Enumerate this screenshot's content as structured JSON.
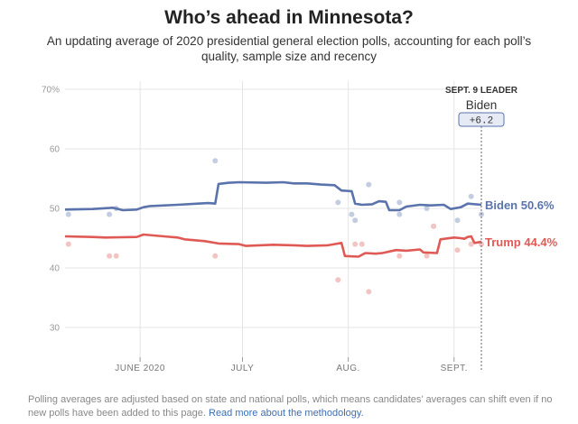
{
  "header": {
    "title": "Who’s ahead in Minnesota?",
    "subtitle": "An updating average of 2020 presidential general election polls, accounting for each poll’s quality, sample size and recency"
  },
  "leader_box": {
    "date_label": "SEPT. 9 LEADER",
    "name": "Biden",
    "margin": "+6.2"
  },
  "footnote": {
    "text": "Polling averages are adjusted based on state and national polls, which means candidates’ averages can shift even if no new polls have been added to this page.",
    "link": "Read more about the methodology."
  },
  "chart_data": {
    "type": "line",
    "x_start": "2020-05-10",
    "x_end": "2020-09-09",
    "ylim": [
      25,
      72
    ],
    "y_ticks": [
      30,
      40,
      50,
      60,
      70
    ],
    "y_tick_labels": [
      "30",
      "40",
      "50",
      "60",
      "70%"
    ],
    "x_ticks": [
      {
        "date": "2020-06-01",
        "label": "JUNE 2020"
      },
      {
        "date": "2020-07-01",
        "label": "JULY"
      },
      {
        "date": "2020-08-01",
        "label": "AUG."
      },
      {
        "date": "2020-09-01",
        "label": "SEPT."
      }
    ],
    "grid": true,
    "series": [
      {
        "name": "Biden",
        "end_label": "Biden 50.6%",
        "color": "#5a73ad",
        "dot_color": "#c3cce0",
        "points": [
          [
            "2020-05-10",
            49.8
          ],
          [
            "2020-05-18",
            49.9
          ],
          [
            "2020-05-24",
            50.1
          ],
          [
            "2020-05-27",
            49.7
          ],
          [
            "2020-05-31",
            49.8
          ],
          [
            "2020-06-02",
            50.2
          ],
          [
            "2020-06-04",
            50.4
          ],
          [
            "2020-06-12",
            50.6
          ],
          [
            "2020-06-18",
            50.8
          ],
          [
            "2020-06-21",
            50.9
          ],
          [
            "2020-06-23",
            50.8
          ],
          [
            "2020-06-24",
            54.1
          ],
          [
            "2020-06-27",
            54.3
          ],
          [
            "2020-06-30",
            54.4
          ],
          [
            "2020-07-08",
            54.3
          ],
          [
            "2020-07-13",
            54.4
          ],
          [
            "2020-07-16",
            54.2
          ],
          [
            "2020-07-20",
            54.2
          ],
          [
            "2020-07-24",
            54.0
          ],
          [
            "2020-07-28",
            53.9
          ],
          [
            "2020-07-30",
            53.0
          ],
          [
            "2020-08-02",
            52.9
          ],
          [
            "2020-08-03",
            50.8
          ],
          [
            "2020-08-05",
            50.6
          ],
          [
            "2020-08-08",
            50.7
          ],
          [
            "2020-08-10",
            51.2
          ],
          [
            "2020-08-12",
            51.1
          ],
          [
            "2020-08-13",
            49.7
          ],
          [
            "2020-08-16",
            49.7
          ],
          [
            "2020-08-18",
            50.3
          ],
          [
            "2020-08-22",
            50.6
          ],
          [
            "2020-08-25",
            50.5
          ],
          [
            "2020-08-29",
            50.6
          ],
          [
            "2020-08-31",
            49.9
          ],
          [
            "2020-09-03",
            50.2
          ],
          [
            "2020-09-05",
            50.8
          ],
          [
            "2020-09-09",
            50.6
          ]
        ],
        "polls": [
          [
            "2020-05-11",
            49
          ],
          [
            "2020-05-23",
            49
          ],
          [
            "2020-05-25",
            50
          ],
          [
            "2020-06-23",
            58
          ],
          [
            "2020-07-29",
            51
          ],
          [
            "2020-08-02",
            49
          ],
          [
            "2020-08-03",
            48
          ],
          [
            "2020-08-07",
            54
          ],
          [
            "2020-08-16",
            51
          ],
          [
            "2020-08-16",
            49
          ],
          [
            "2020-08-24",
            50
          ],
          [
            "2020-08-26",
            47
          ],
          [
            "2020-09-02",
            48
          ],
          [
            "2020-09-06",
            52
          ],
          [
            "2020-09-09",
            49
          ]
        ]
      },
      {
        "name": "Trump",
        "end_label": "Trump 44.4%",
        "color": "#e05a55",
        "dot_color": "#f2c4c2",
        "points": [
          [
            "2020-05-10",
            45.3
          ],
          [
            "2020-05-18",
            45.2
          ],
          [
            "2020-05-22",
            45.1
          ],
          [
            "2020-05-31",
            45.2
          ],
          [
            "2020-06-02",
            45.6
          ],
          [
            "2020-06-08",
            45.3
          ],
          [
            "2020-06-12",
            45.1
          ],
          [
            "2020-06-14",
            44.8
          ],
          [
            "2020-06-20",
            44.5
          ],
          [
            "2020-06-24",
            44.1
          ],
          [
            "2020-06-30",
            44.0
          ],
          [
            "2020-07-02",
            43.7
          ],
          [
            "2020-07-10",
            43.9
          ],
          [
            "2020-07-16",
            43.8
          ],
          [
            "2020-07-20",
            43.7
          ],
          [
            "2020-07-26",
            43.8
          ],
          [
            "2020-07-28",
            44.0
          ],
          [
            "2020-07-30",
            44.2
          ],
          [
            "2020-07-31",
            42.0
          ],
          [
            "2020-08-04",
            41.9
          ],
          [
            "2020-08-06",
            42.5
          ],
          [
            "2020-08-09",
            42.4
          ],
          [
            "2020-08-11",
            42.5
          ],
          [
            "2020-08-15",
            43.0
          ],
          [
            "2020-08-18",
            42.9
          ],
          [
            "2020-08-22",
            43.1
          ],
          [
            "2020-08-23",
            42.6
          ],
          [
            "2020-08-27",
            42.5
          ],
          [
            "2020-08-28",
            44.8
          ],
          [
            "2020-09-01",
            45.1
          ],
          [
            "2020-09-03",
            45.0
          ],
          [
            "2020-09-04",
            44.9
          ],
          [
            "2020-09-05",
            45.2
          ],
          [
            "2020-09-06",
            45.3
          ],
          [
            "2020-09-07",
            44.2
          ],
          [
            "2020-09-09",
            44.4
          ]
        ],
        "polls": [
          [
            "2020-05-11",
            44
          ],
          [
            "2020-05-23",
            42
          ],
          [
            "2020-05-25",
            42
          ],
          [
            "2020-06-23",
            42
          ],
          [
            "2020-07-29",
            38
          ],
          [
            "2020-08-03",
            44
          ],
          [
            "2020-08-05",
            44
          ],
          [
            "2020-08-07",
            36
          ],
          [
            "2020-08-16",
            42
          ],
          [
            "2020-08-24",
            42
          ],
          [
            "2020-08-26",
            47
          ],
          [
            "2020-09-02",
            43
          ],
          [
            "2020-09-06",
            44
          ],
          [
            "2020-09-09",
            44
          ]
        ]
      }
    ]
  }
}
